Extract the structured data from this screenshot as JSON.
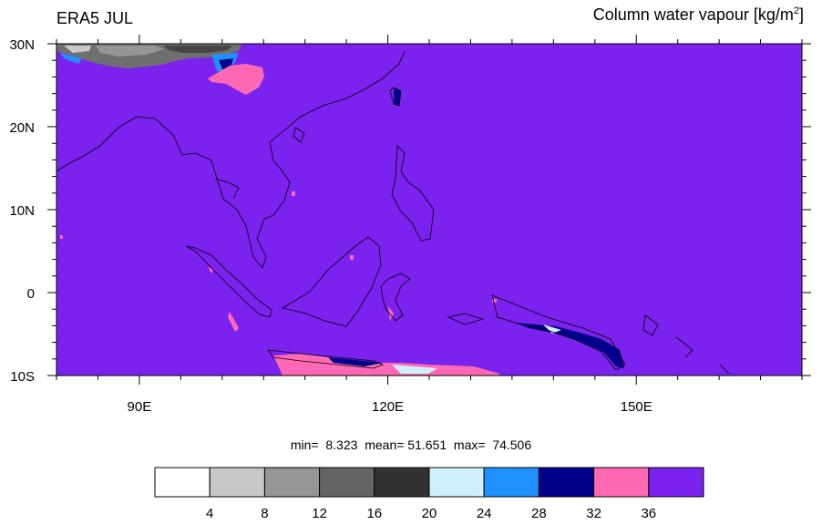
{
  "header": {
    "title": "ERA5 JUL",
    "variable_label": "Column water vapour [kg/m",
    "variable_unit_exponent": "2",
    "variable_label_end": "]"
  },
  "map": {
    "lon_range": [
      80,
      170
    ],
    "lat_range": [
      -10,
      30
    ],
    "lat_tick_labels": [
      "30N",
      "20N",
      "10N",
      "0",
      "10S"
    ],
    "lon_tick_labels": [
      "90E",
      "120E",
      "150E"
    ],
    "background_color": "#7B22EE"
  },
  "stats": {
    "min_label": "min=",
    "min": "8.323",
    "mean_label": "mean=",
    "mean": "51.651",
    "max_label": "max=",
    "max": "74.506"
  },
  "colorbar": {
    "colors": [
      "#ffffff",
      "#c8c8c8",
      "#969696",
      "#646464",
      "#323232",
      "#d0f0ff",
      "#1e90ff",
      "#00008b",
      "#ff69b4",
      "#7b22ee"
    ],
    "labels": [
      "4",
      "8",
      "12",
      "16",
      "20",
      "24",
      "28",
      "32",
      "36"
    ]
  }
}
